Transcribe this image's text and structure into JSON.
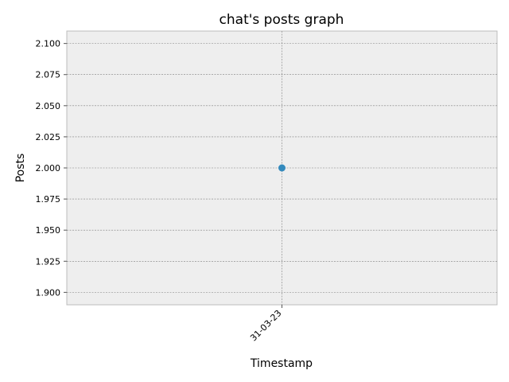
{
  "chart_data": {
    "type": "line",
    "title": "chat's posts graph",
    "xlabel": "Timestamp",
    "ylabel": "Posts",
    "categories": [
      "31-03-23"
    ],
    "series": [
      {
        "values": [
          2.0
        ],
        "color": "#348abd",
        "marker": "circle"
      }
    ],
    "ylim": [
      1.89,
      2.11
    ],
    "yticks": [
      "1.900",
      "1.925",
      "1.950",
      "1.975",
      "2.000",
      "2.025",
      "2.050",
      "2.075",
      "2.100"
    ],
    "ytick_values": [
      1.9,
      1.925,
      1.95,
      1.975,
      2.0,
      2.025,
      2.05,
      2.075,
      2.1
    ],
    "grid": true,
    "plot_background": "#eeeeee",
    "grid_color": "#808080",
    "xtick_rotation": "45 degrees"
  }
}
